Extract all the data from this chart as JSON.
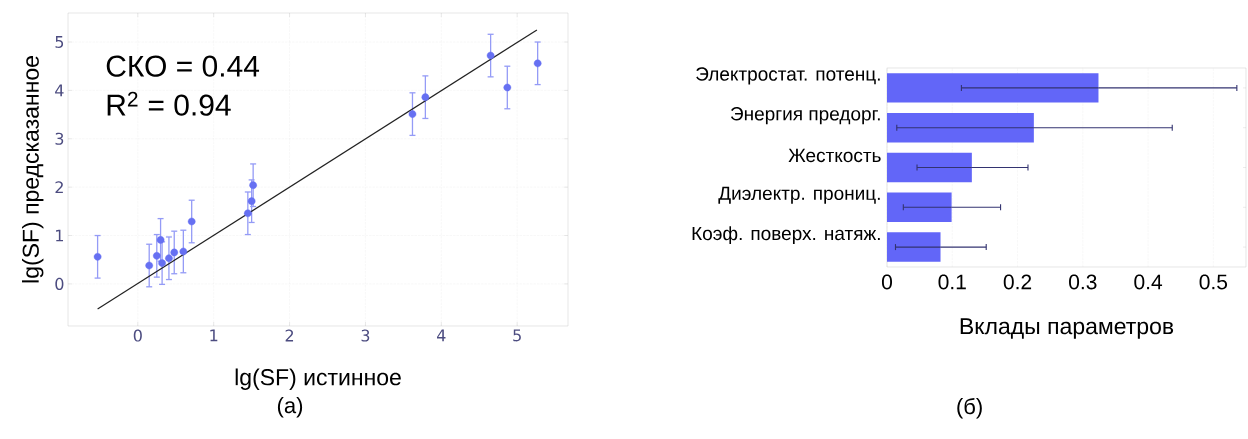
{
  "chart_data": [
    {
      "type": "scatter",
      "xlabel": "lg(SF) истинное",
      "ylabel": "lg(SF) предсказанное",
      "annotations": [
        "СКО = 0.44",
        "R$^{2}$ = 0.94",
        "(а)"
      ],
      "xlim": [
        -0.92,
        5.67
      ],
      "ylim": [
        -0.87,
        5.6
      ],
      "xticks": [
        0,
        1,
        2,
        3,
        4,
        5
      ],
      "yticks": [
        0,
        1,
        2,
        3,
        4,
        5
      ],
      "grid": true,
      "series": [
        {
          "marker": "circle",
          "color": "#6670f2",
          "x": [
            -0.53,
            0.15,
            0.25,
            0.3,
            0.32,
            0.41,
            0.48,
            0.6,
            0.71,
            1.45,
            1.5,
            1.52,
            3.62,
            3.79,
            4.65,
            4.87,
            5.27
          ],
          "values": [
            0.56,
            0.38,
            0.58,
            0.91,
            0.43,
            0.53,
            0.65,
            0.67,
            1.29,
            1.46,
            1.71,
            2.04,
            3.51,
            3.86,
            4.72,
            4.06,
            4.56
          ],
          "errors": [
            0.44,
            0.44,
            0.44,
            0.44,
            0.44,
            0.44,
            0.44,
            0.44,
            0.44,
            0.44,
            0.44,
            0.44,
            0.44,
            0.44,
            0.44,
            0.44,
            0.44
          ]
        },
        {
          "type": "line",
          "marker": "none",
          "color": "#222222",
          "x": [
            -0.53,
            5.26
          ],
          "values": [
            -0.52,
            5.25
          ]
        }
      ]
    },
    {
      "type": "bar",
      "orientation": "horizontal",
      "xlabel": "Вклады параметров",
      "annotations": [
        "(б)"
      ],
      "categories": [
        "Электростат. потенц.",
        "Энергия предорг.",
        "Жесткость",
        "Диэлектр. прониц.",
        "Коэф. поверх. натяж."
      ],
      "values": [
        0.324,
        0.225,
        0.13,
        0.099,
        0.082
      ],
      "color": "#6266f8",
      "errors": [
        [
          0.114,
          0.536
        ],
        [
          0.015,
          0.437
        ],
        [
          0.046,
          0.216
        ],
        [
          0.025,
          0.174
        ],
        [
          0.013,
          0.152
        ]
      ],
      "xlim": [
        0,
        0.55
      ],
      "xticks": [
        0,
        0.1,
        0.2,
        0.3,
        0.4,
        0.5
      ],
      "grid": "x"
    }
  ]
}
